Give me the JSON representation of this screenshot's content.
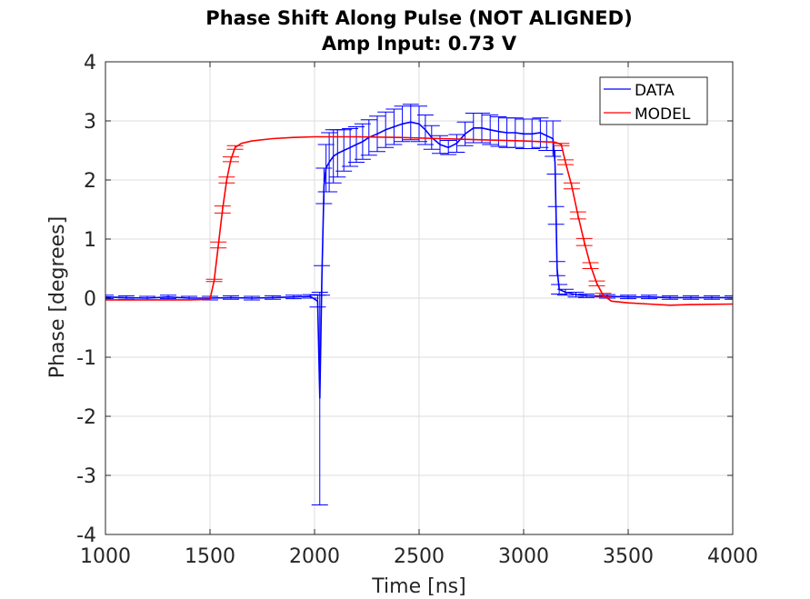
{
  "chart_data": {
    "type": "line",
    "title": "Phase Shift Along Pulse (NOT ALIGNED)",
    "subtitle": "Amp Input: 0.73 V",
    "xlabel": "Time [ns]",
    "ylabel": "Phase [degrees]",
    "xlim": [
      1000,
      4000
    ],
    "ylim": [
      -4,
      4
    ],
    "xticks": [
      1000,
      1500,
      2000,
      2500,
      3000,
      3500,
      4000
    ],
    "yticks": [
      -4,
      -3,
      -2,
      -1,
      0,
      1,
      2,
      3,
      4
    ],
    "xtick_labels": [
      "1000",
      "1500",
      "2000",
      "2500",
      "3000",
      "3500",
      "4000"
    ],
    "ytick_labels": [
      "-4",
      "-3",
      "-2",
      "-1",
      "0",
      "1",
      "2",
      "3",
      "4"
    ],
    "grid": true,
    "legend_position": "top-right",
    "series": [
      {
        "name": "DATA",
        "color": "#0000ff",
        "error_bars": true,
        "points": [
          [
            1000,
            0.02,
            0.03
          ],
          [
            1100,
            0.01,
            0.03
          ],
          [
            1200,
            0.0,
            0.03
          ],
          [
            1300,
            0.02,
            0.03
          ],
          [
            1400,
            0.0,
            0.03
          ],
          [
            1500,
            0.0,
            0.03
          ],
          [
            1600,
            0.01,
            0.03
          ],
          [
            1700,
            0.0,
            0.03
          ],
          [
            1800,
            0.01,
            0.03
          ],
          [
            1900,
            0.02,
            0.03
          ],
          [
            1980,
            0.03,
            0.03
          ],
          [
            2015,
            -0.05,
            0.1
          ],
          [
            2025,
            -1.7,
            1.8
          ],
          [
            2035,
            0.3,
            0.25
          ],
          [
            2045,
            1.9,
            0.3
          ],
          [
            2055,
            2.2,
            0.4
          ],
          [
            2070,
            2.3,
            0.5
          ],
          [
            2090,
            2.4,
            0.45
          ],
          [
            2110,
            2.45,
            0.4
          ],
          [
            2140,
            2.5,
            0.35
          ],
          [
            2170,
            2.55,
            0.32
          ],
          [
            2200,
            2.6,
            0.3
          ],
          [
            2230,
            2.65,
            0.3
          ],
          [
            2260,
            2.72,
            0.3
          ],
          [
            2300,
            2.78,
            0.3
          ],
          [
            2340,
            2.85,
            0.3
          ],
          [
            2380,
            2.9,
            0.3
          ],
          [
            2420,
            2.95,
            0.3
          ],
          [
            2460,
            2.98,
            0.3
          ],
          [
            2500,
            2.95,
            0.3
          ],
          [
            2530,
            2.85,
            0.25
          ],
          [
            2560,
            2.72,
            0.2
          ],
          [
            2600,
            2.6,
            0.15
          ],
          [
            2640,
            2.55,
            0.12
          ],
          [
            2680,
            2.62,
            0.15
          ],
          [
            2720,
            2.78,
            0.2
          ],
          [
            2760,
            2.88,
            0.25
          ],
          [
            2800,
            2.88,
            0.25
          ],
          [
            2840,
            2.85,
            0.25
          ],
          [
            2880,
            2.82,
            0.25
          ],
          [
            2920,
            2.8,
            0.25
          ],
          [
            2960,
            2.8,
            0.25
          ],
          [
            3000,
            2.78,
            0.25
          ],
          [
            3040,
            2.78,
            0.25
          ],
          [
            3080,
            2.8,
            0.25
          ],
          [
            3110,
            2.75,
            0.25
          ],
          [
            3140,
            2.7,
            0.3
          ],
          [
            3150,
            2.3,
            0.2
          ],
          [
            3155,
            1.4,
            0.15
          ],
          [
            3160,
            0.5,
            0.12
          ],
          [
            3170,
            0.15,
            0.08
          ],
          [
            3200,
            0.1,
            0.05
          ],
          [
            3250,
            0.06,
            0.04
          ],
          [
            3300,
            0.04,
            0.03
          ],
          [
            3400,
            0.03,
            0.03
          ],
          [
            3500,
            0.02,
            0.03
          ],
          [
            3600,
            0.02,
            0.03
          ],
          [
            3700,
            0.01,
            0.03
          ],
          [
            3800,
            0.01,
            0.03
          ],
          [
            3900,
            0.01,
            0.03
          ],
          [
            4000,
            0.01,
            0.03
          ]
        ]
      },
      {
        "name": "MODEL",
        "color": "#ff0000",
        "error_bars": true,
        "points": [
          [
            1000,
            -0.03,
            0.0
          ],
          [
            1200,
            -0.03,
            0.0
          ],
          [
            1400,
            -0.03,
            0.0
          ],
          [
            1500,
            -0.02,
            0.0
          ],
          [
            1520,
            0.3,
            0.02
          ],
          [
            1540,
            0.9,
            0.05
          ],
          [
            1560,
            1.5,
            0.06
          ],
          [
            1580,
            2.0,
            0.05
          ],
          [
            1600,
            2.35,
            0.04
          ],
          [
            1620,
            2.55,
            0.03
          ],
          [
            1650,
            2.62,
            0.0
          ],
          [
            1700,
            2.66,
            0.0
          ],
          [
            1800,
            2.7,
            0.0
          ],
          [
            1900,
            2.72,
            0.0
          ],
          [
            2000,
            2.73,
            0.0
          ],
          [
            2200,
            2.73,
            0.0
          ],
          [
            2400,
            2.72,
            0.0
          ],
          [
            2600,
            2.7,
            0.0
          ],
          [
            2800,
            2.68,
            0.0
          ],
          [
            3000,
            2.66,
            0.0
          ],
          [
            3150,
            2.64,
            0.0
          ],
          [
            3180,
            2.6,
            0.02
          ],
          [
            3200,
            2.3,
            0.04
          ],
          [
            3230,
            1.9,
            0.05
          ],
          [
            3260,
            1.4,
            0.06
          ],
          [
            3290,
            0.95,
            0.06
          ],
          [
            3320,
            0.55,
            0.05
          ],
          [
            3350,
            0.25,
            0.04
          ],
          [
            3380,
            0.05,
            0.03
          ],
          [
            3420,
            -0.05,
            0.0
          ],
          [
            3500,
            -0.08,
            0.0
          ],
          [
            3600,
            -0.1,
            0.0
          ],
          [
            3700,
            -0.12,
            0.0
          ],
          [
            3800,
            -0.11,
            0.0
          ],
          [
            4000,
            -0.1,
            0.0
          ]
        ]
      }
    ]
  }
}
